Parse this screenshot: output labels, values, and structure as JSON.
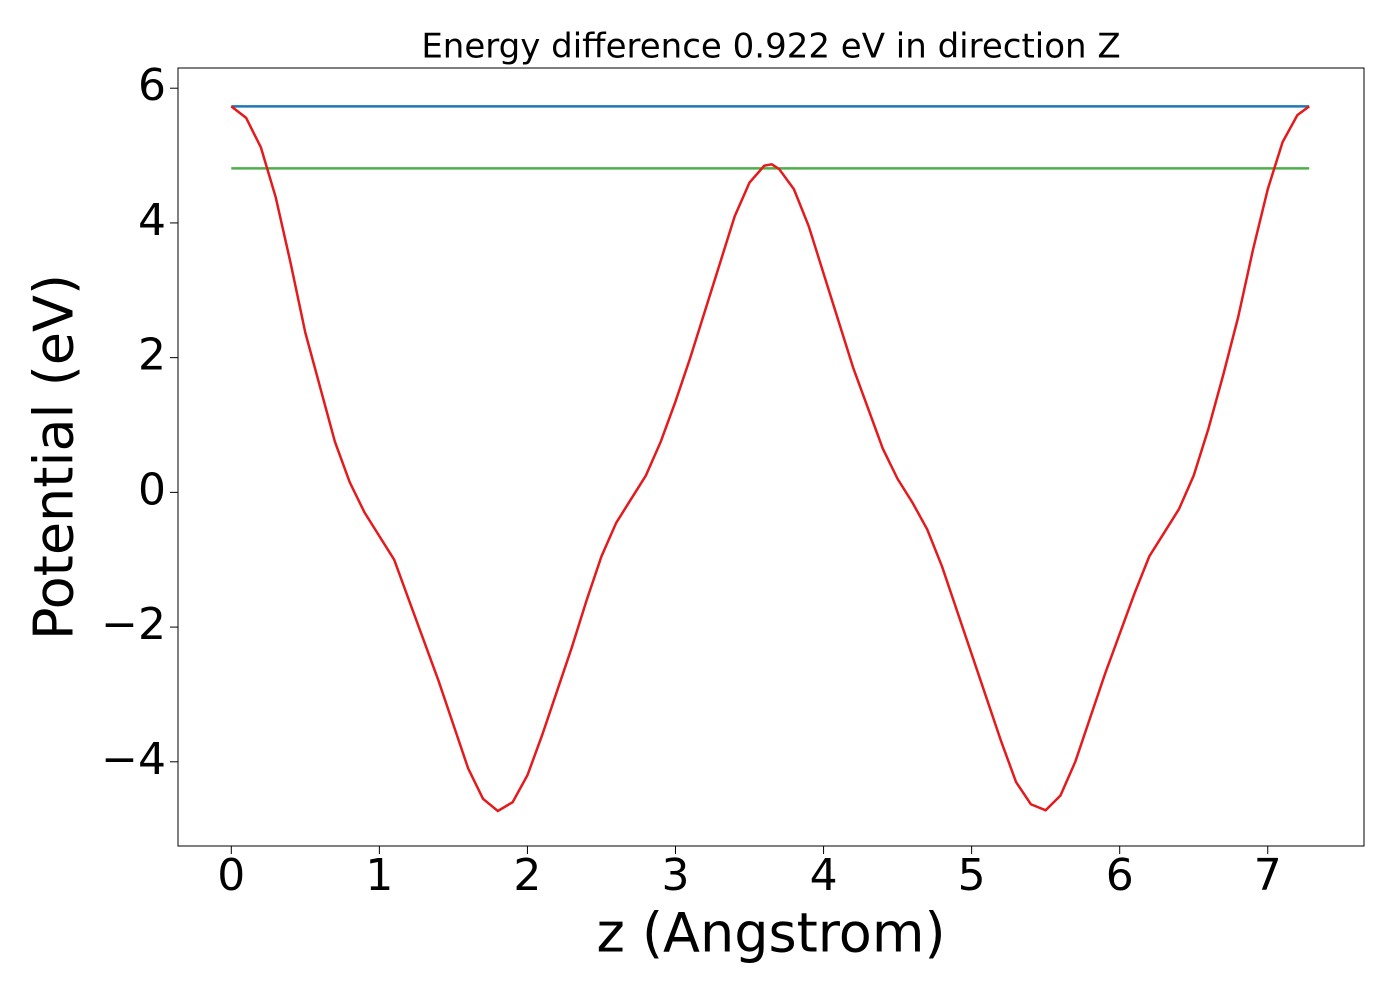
{
  "chart_data": {
    "type": "line",
    "title": "Energy difference 0.922 eV in direction Z",
    "xlabel": "z (Angstrom)",
    "ylabel": "Potential (eV)",
    "xlim": [
      -0.36,
      7.65
    ],
    "ylim": [
      -5.25,
      6.3
    ],
    "xticks": [
      0,
      1,
      2,
      3,
      4,
      5,
      6,
      7
    ],
    "yticks": [
      {
        "value": -4,
        "label": "−4"
      },
      {
        "value": -2,
        "label": "−2"
      },
      0,
      2,
      4,
      6
    ],
    "grid": false,
    "series": [
      {
        "color": "#1f77b4",
        "x": [
          0,
          7.28
        ],
        "values": [
          5.73,
          5.73
        ]
      },
      {
        "color": "#4daf4a",
        "x": [
          0,
          7.28
        ],
        "values": [
          4.81,
          4.81
        ]
      },
      {
        "color": "#e41a1c",
        "x": [
          0,
          0.1,
          0.2,
          0.3,
          0.4,
          0.5,
          0.6,
          0.7,
          0.8,
          0.9,
          1.0,
          1.1,
          1.2,
          1.3,
          1.4,
          1.5,
          1.6,
          1.7,
          1.8,
          1.9,
          2.0,
          2.1,
          2.2,
          2.3,
          2.4,
          2.5,
          2.6,
          2.7,
          2.8,
          2.9,
          3.0,
          3.1,
          3.2,
          3.3,
          3.4,
          3.5,
          3.6,
          3.65,
          3.7,
          3.8,
          3.9,
          4.0,
          4.1,
          4.2,
          4.3,
          4.4,
          4.5,
          4.6,
          4.7,
          4.8,
          4.9,
          5.0,
          5.1,
          5.2,
          5.3,
          5.4,
          5.5,
          5.6,
          5.7,
          5.8,
          5.9,
          6.0,
          6.1,
          6.2,
          6.3,
          6.4,
          6.5,
          6.6,
          6.7,
          6.8,
          6.9,
          7.0,
          7.1,
          7.2,
          7.28
        ],
        "values": [
          5.73,
          5.56,
          5.12,
          4.38,
          3.41,
          2.37,
          1.56,
          0.75,
          0.15,
          -0.3,
          -0.65,
          -1.0,
          -1.6,
          -2.2,
          -2.8,
          -3.45,
          -4.1,
          -4.55,
          -4.73,
          -4.6,
          -4.2,
          -3.6,
          -2.95,
          -2.3,
          -1.6,
          -0.95,
          -0.45,
          -0.1,
          0.25,
          0.75,
          1.35,
          2.0,
          2.7,
          3.4,
          4.1,
          4.6,
          4.85,
          4.87,
          4.8,
          4.5,
          3.95,
          3.25,
          2.55,
          1.85,
          1.25,
          0.65,
          0.2,
          -0.15,
          -0.55,
          -1.1,
          -1.75,
          -2.4,
          -3.05,
          -3.7,
          -4.3,
          -4.63,
          -4.72,
          -4.5,
          -4.0,
          -3.35,
          -2.7,
          -2.1,
          -1.5,
          -0.95,
          -0.6,
          -0.25,
          0.25,
          0.95,
          1.75,
          2.6,
          3.6,
          4.5,
          5.2,
          5.6,
          5.73
        ]
      }
    ]
  }
}
